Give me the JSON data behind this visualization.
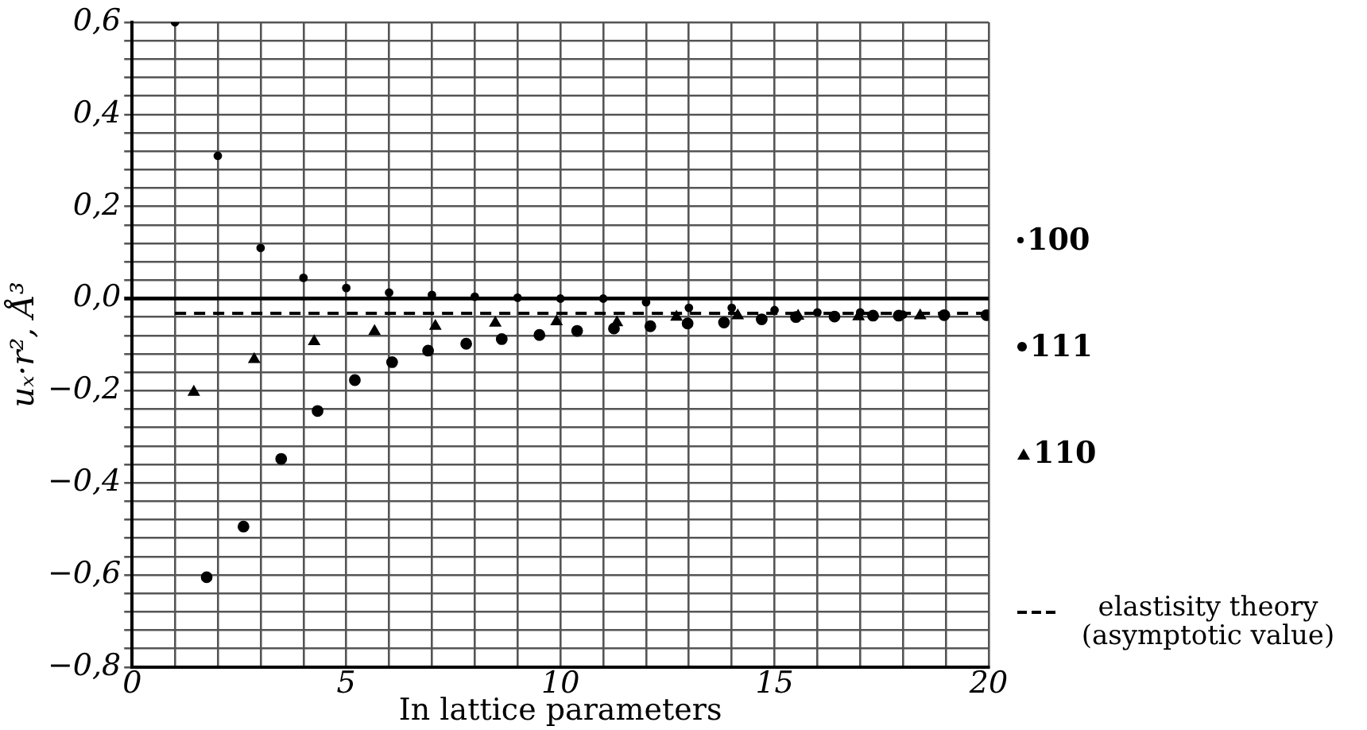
{
  "chart_data": {
    "type": "scatter",
    "xlabel": "In lattice parameters",
    "ylabel": "uₓ·r², Å³",
    "xlim": [
      0,
      20
    ],
    "xticks": [
      0,
      {
        "value": 1,
        "label": null
      },
      {
        "value": 2,
        "label": null
      },
      {
        "value": 3,
        "label": null
      },
      {
        "value": 4,
        "label": null
      },
      5,
      {
        "value": 6,
        "label": null
      },
      {
        "value": 7,
        "label": null
      },
      {
        "value": 8,
        "label": null
      },
      {
        "value": 9,
        "label": null
      },
      10,
      {
        "value": 11,
        "label": null
      },
      {
        "value": 12,
        "label": null
      },
      {
        "value": 13,
        "label": null
      },
      {
        "value": 14,
        "label": null
      },
      15,
      {
        "value": 16,
        "label": null
      },
      {
        "value": 17,
        "label": null
      },
      {
        "value": 18,
        "label": null
      },
      {
        "value": 19,
        "label": null
      },
      20
    ],
    "ylim": [
      -0.8,
      0.6
    ],
    "yticks": [
      {
        "value": -0.8,
        "label": "−0,8"
      },
      {
        "value": -0.76,
        "label": null
      },
      {
        "value": -0.72,
        "label": null
      },
      {
        "value": -0.68,
        "label": null
      },
      {
        "value": -0.64,
        "label": null
      },
      {
        "value": -0.6,
        "label": "−0,6"
      },
      {
        "value": -0.56,
        "label": null
      },
      {
        "value": -0.52,
        "label": null
      },
      {
        "value": -0.48,
        "label": null
      },
      {
        "value": -0.44,
        "label": null
      },
      {
        "value": -0.4,
        "label": "−0,4"
      },
      {
        "value": -0.36,
        "label": null
      },
      {
        "value": -0.32,
        "label": null
      },
      {
        "value": -0.28,
        "label": null
      },
      {
        "value": -0.24,
        "label": null
      },
      {
        "value": -0.2,
        "label": "−0,2"
      },
      {
        "value": -0.16,
        "label": null
      },
      {
        "value": -0.12,
        "label": null
      },
      {
        "value": -0.08,
        "label": null
      },
      {
        "value": -0.04,
        "label": null
      },
      {
        "value": 0,
        "label": "0,0"
      },
      {
        "value": 0.04,
        "label": null
      },
      {
        "value": 0.08,
        "label": null
      },
      {
        "value": 0.12,
        "label": null
      },
      {
        "value": 0.16,
        "label": null
      },
      {
        "value": 0.2,
        "label": "0,2"
      },
      {
        "value": 0.24,
        "label": null
      },
      {
        "value": 0.28,
        "label": null
      },
      {
        "value": 0.32,
        "label": null
      },
      {
        "value": 0.36,
        "label": null
      },
      {
        "value": 0.4,
        "label": "0,4"
      },
      {
        "value": 0.44,
        "label": null
      },
      {
        "value": 0.48,
        "label": null
      },
      {
        "value": 0.52,
        "label": null
      },
      {
        "value": 0.56,
        "label": null
      },
      {
        "value": 0.6,
        "label": "0,6"
      }
    ],
    "grid": true,
    "legend": "right",
    "series": [
      {
        "name": "100",
        "color": "#000000",
        "marker": "circle",
        "x": [
          1,
          2,
          3,
          4,
          5,
          6,
          7,
          8,
          9,
          10,
          11,
          12,
          13,
          14,
          15,
          16,
          17,
          18,
          19
        ],
        "values": [
          0.6,
          0.31,
          0.11,
          0.045,
          0.023,
          0.013,
          0.008,
          0.004,
          0.002,
          0,
          0,
          -0.008,
          -0.02,
          -0.02,
          -0.025,
          -0.03,
          -0.03,
          -0.035,
          -0.035
        ]
      },
      {
        "name": "111",
        "color": "#000000",
        "marker": "circle",
        "x": [
          1.74,
          2.6,
          3.48,
          4.33,
          5.2,
          6.07,
          6.91,
          7.8,
          8.63,
          9.51,
          10.39,
          11.25,
          12.1,
          12.97,
          13.82,
          14.7,
          15.5,
          16.4,
          17.3,
          17.9,
          18.96,
          19.95
        ],
        "values": [
          -0.605,
          -0.495,
          -0.348,
          -0.244,
          -0.177,
          -0.138,
          -0.113,
          -0.098,
          -0.088,
          -0.079,
          -0.07,
          -0.065,
          -0.06,
          -0.054,
          -0.052,
          -0.045,
          -0.04,
          -0.039,
          -0.037,
          -0.037,
          -0.036,
          -0.036
        ]
      },
      {
        "name": "110",
        "color": "#000000",
        "marker": "triangle",
        "x": [
          1.44,
          2.85,
          4.25,
          5.66,
          7.08,
          8.48,
          9.91,
          11.32,
          12.71,
          14.14,
          15.55,
          16.96,
          18.4
        ],
        "values": [
          -0.203,
          -0.132,
          -0.093,
          -0.071,
          -0.06,
          -0.053,
          -0.05,
          -0.052,
          -0.04,
          -0.037,
          -0.038,
          -0.039,
          -0.037
        ]
      }
    ],
    "ref_lines": [
      {
        "axis": "y",
        "value": -0.032,
        "label": "elastisity theory (asymptotic value)",
        "color": "#000000",
        "line_style": "dashed"
      }
    ]
  }
}
